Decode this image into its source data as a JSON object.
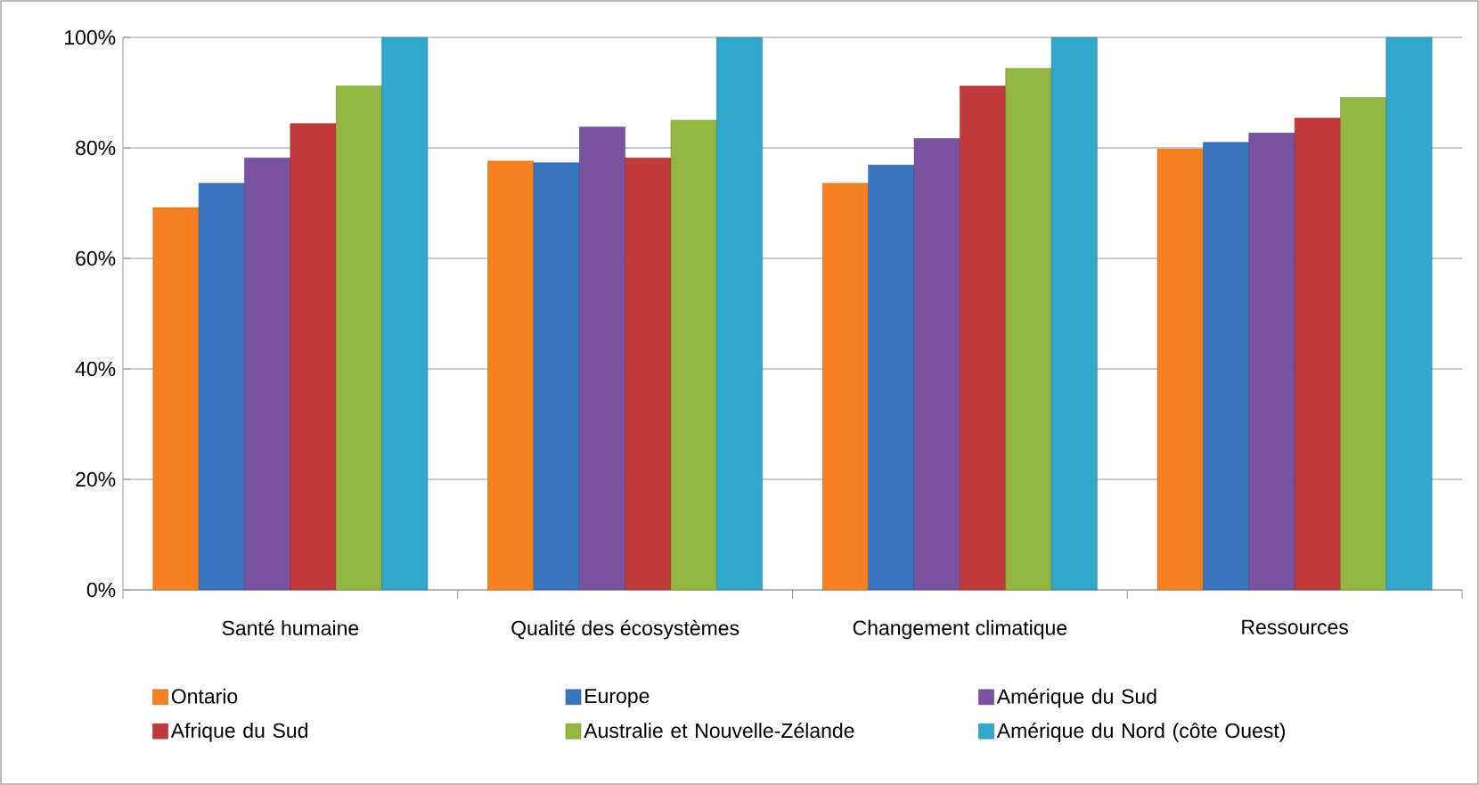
{
  "chart_data": {
    "type": "bar",
    "categories": [
      "Santé humaine",
      "Qualité des écosystèmes",
      "Changement climatique",
      "Ressources"
    ],
    "series": [
      {
        "name": "Ontario",
        "color": "#f58220",
        "values": [
          69.2,
          77.6,
          73.6,
          79.8
        ]
      },
      {
        "name": "Europe",
        "color": "#3a74bc",
        "values": [
          73.6,
          77.3,
          76.9,
          81.0
        ]
      },
      {
        "name": "Amérique du Sud",
        "color": "#7952a0",
        "values": [
          78.2,
          83.8,
          81.7,
          82.7
        ]
      },
      {
        "name": "Afrique du Sud",
        "color": "#c0393b",
        "values": [
          84.4,
          78.2,
          91.2,
          85.4
        ]
      },
      {
        "name": "Australie et Nouvelle-Zélande",
        "color": "#93b842",
        "values": [
          91.2,
          85.0,
          94.4,
          89.1
        ]
      },
      {
        "name": "Amérique du Nord (côte Ouest)",
        "color": "#31a7c9",
        "values": [
          100,
          100,
          100,
          100
        ]
      }
    ],
    "ylim": [
      0,
      100
    ],
    "yticks": [
      {
        "value": 0,
        "label": "0%"
      },
      {
        "value": 20,
        "label": "20%"
      },
      {
        "value": 40,
        "label": "40%"
      },
      {
        "value": 60,
        "label": "60%"
      },
      {
        "value": 80,
        "label": "80%"
      },
      {
        "value": 100,
        "label": "100%"
      }
    ],
    "grid": "y",
    "legend": "bottom"
  }
}
